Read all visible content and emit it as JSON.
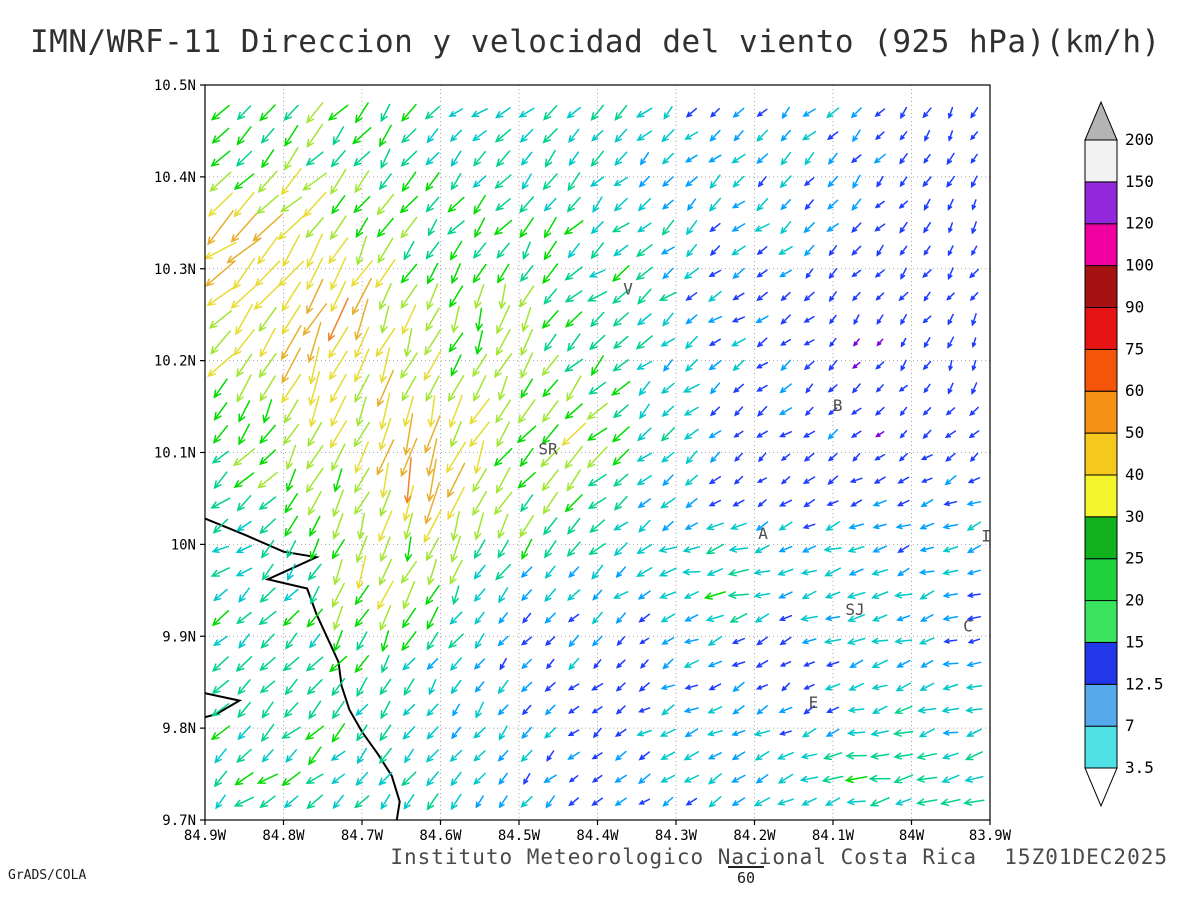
{
  "title": "IMN/WRF-11 Direccion y velocidad del viento (925 hPa)(km/h)",
  "footer": "Instituto Meteorologico Nacional Costa Rica  15Z01DEC2025",
  "credit": "GrADS/COLA",
  "overlay_label": "60",
  "chart_data": {
    "type": "vector_field",
    "title": "IMN/WRF-11 Direccion y velocidad del viento (925 hPa)(km/h)",
    "units": "km/h",
    "level": "925 hPa",
    "valid_time": "15Z01DEC2025",
    "grid_on": true,
    "legend_position": "right",
    "x_axis": {
      "min": -84.9,
      "max": -83.9,
      "ticks": [
        {
          "label": "84.9W",
          "value": -84.9
        },
        {
          "label": "84.8W",
          "value": -84.8
        },
        {
          "label": "84.7W",
          "value": -84.7
        },
        {
          "label": "84.6W",
          "value": -84.6
        },
        {
          "label": "84.5W",
          "value": -84.5
        },
        {
          "label": "84.4W",
          "value": -84.4
        },
        {
          "label": "84.3W",
          "value": -84.3
        },
        {
          "label": "84.2W",
          "value": -84.2
        },
        {
          "label": "84.1W",
          "value": -84.1
        },
        {
          "label": "84W",
          "value": -84.0
        },
        {
          "label": "83.9W",
          "value": -83.9
        }
      ]
    },
    "y_axis": {
      "min": 9.7,
      "max": 10.5,
      "ticks": [
        {
          "label": "10.5N",
          "value": 10.5
        },
        {
          "label": "10.4N",
          "value": 10.4
        },
        {
          "label": "10.3N",
          "value": 10.3
        },
        {
          "label": "10.2N",
          "value": 10.2
        },
        {
          "label": "10.1N",
          "value": 10.1
        },
        {
          "label": "10N",
          "value": 10.0
        },
        {
          "label": "9.9N",
          "value": 9.9
        },
        {
          "label": "9.8N",
          "value": 9.8
        },
        {
          "label": "9.7N",
          "value": 9.7
        }
      ]
    },
    "legend": {
      "levels": [
        3.5,
        7,
        12.5,
        15,
        20,
        25,
        30,
        40,
        50,
        60,
        75,
        90,
        100,
        120,
        150,
        200
      ],
      "colors": [
        "#4FE1E6",
        "#55AAEE",
        "#2238E8",
        "#3BE45F",
        "#1FD23E",
        "#12B21E",
        "#F5F52E",
        "#F5C81E",
        "#F59114",
        "#F5550A",
        "#E61414",
        "#A51212",
        "#F000A0",
        "#9428DC",
        "#F2F2F2"
      ],
      "under_color": "#FFFFFF",
      "over_color": "#B4B4B4"
    },
    "arrow_palette": {
      "thresholds": [
        3.5,
        7,
        12.5,
        15,
        20,
        25,
        30,
        40,
        50,
        60,
        75,
        90,
        100
      ],
      "colors": [
        "#A000C8",
        "#8200DC",
        "#1E3CFF",
        "#00A0FF",
        "#00C8C8",
        "#00D28C",
        "#00DC00",
        "#A0E632",
        "#E6DC32",
        "#E6AF2D",
        "#F08228",
        "#FA3C3C",
        "#F00082"
      ]
    },
    "grid": {
      "lon_start": -84.88,
      "lon_step": 0.03,
      "cols": 33,
      "lat_start": 9.72,
      "lat_step": 0.025,
      "rows": 31,
      "jitter_angle_deg": 14,
      "jitter_speed_frac": 0.22,
      "seed": 7
    },
    "flow_features": [
      {
        "lon": -84.85,
        "lat": 10.46,
        "u": -16,
        "v": -14
      },
      {
        "lon": -84.55,
        "lat": 10.46,
        "u": -13,
        "v": -9
      },
      {
        "lon": -84.25,
        "lat": 10.46,
        "u": -9,
        "v": -7
      },
      {
        "lon": -83.95,
        "lat": 10.46,
        "u": -4,
        "v": -8
      },
      {
        "lon": -84.87,
        "lat": 10.33,
        "u": -48,
        "v": -40
      },
      {
        "lon": -84.72,
        "lat": 10.22,
        "u": -20,
        "v": -58
      },
      {
        "lon": -84.62,
        "lat": 10.08,
        "u": -14,
        "v": -64
      },
      {
        "lon": -84.52,
        "lat": 10.25,
        "u": -8,
        "v": -34
      },
      {
        "lon": -84.4,
        "lat": 10.28,
        "u": -20,
        "v": -12
      },
      {
        "lon": -84.44,
        "lat": 10.12,
        "u": -30,
        "v": -26
      },
      {
        "lon": -84.25,
        "lat": 10.25,
        "u": -12,
        "v": -4
      },
      {
        "lon": -84.05,
        "lat": 10.22,
        "u": -3,
        "v": -5
      },
      {
        "lon": -83.93,
        "lat": 10.2,
        "u": -2,
        "v": -9
      },
      {
        "lon": -83.93,
        "lat": 10.35,
        "u": -5,
        "v": -9
      },
      {
        "lon": -84.2,
        "lat": 10.08,
        "u": -3,
        "v": -3
      },
      {
        "lon": -84.02,
        "lat": 10.1,
        "u": -4,
        "v": -4
      },
      {
        "lon": -83.96,
        "lat": 10.02,
        "u": -14,
        "v": -4
      },
      {
        "lon": -84.25,
        "lat": 9.96,
        "u": -26,
        "v": -2
      },
      {
        "lon": -84.08,
        "lat": 9.94,
        "u": -22,
        "v": -3
      },
      {
        "lon": -83.93,
        "lat": 9.9,
        "u": -10,
        "v": -2
      },
      {
        "lon": -84.05,
        "lat": 9.76,
        "u": -26,
        "v": -5
      },
      {
        "lon": -83.92,
        "lat": 9.74,
        "u": -20,
        "v": -4
      },
      {
        "lon": -84.35,
        "lat": 9.88,
        "u": -4,
        "v": -3
      },
      {
        "lon": -84.5,
        "lat": 9.9,
        "u": -5,
        "v": -6
      },
      {
        "lon": -84.6,
        "lat": 9.82,
        "u": -8,
        "v": -12
      },
      {
        "lon": -84.68,
        "lat": 9.98,
        "u": -12,
        "v": -40
      },
      {
        "lon": -84.8,
        "lat": 9.88,
        "u": -16,
        "v": -14
      },
      {
        "lon": -84.87,
        "lat": 10.0,
        "u": -16,
        "v": -6
      },
      {
        "lon": -84.82,
        "lat": 9.74,
        "u": -18,
        "v": -13
      },
      {
        "lon": -84.4,
        "lat": 9.74,
        "u": -6,
        "v": -5
      },
      {
        "lon": -84.3,
        "lat": 9.8,
        "u": -14,
        "v": -6
      },
      {
        "lon": -84.55,
        "lat": 10.35,
        "u": -14,
        "v": -16
      },
      {
        "lon": -84.15,
        "lat": 9.86,
        "u": -4,
        "v": -4
      }
    ],
    "stations": [
      {
        "label": "V",
        "lon": -84.361,
        "lat": 10.272
      },
      {
        "label": "SR",
        "lon": -84.463,
        "lat": 10.098
      },
      {
        "label": "B",
        "lon": -84.094,
        "lat": 10.145
      },
      {
        "label": "A",
        "lon": -84.189,
        "lat": 10.006
      },
      {
        "label": "SJ",
        "lon": -84.072,
        "lat": 9.923
      },
      {
        "label": "C",
        "lon": -83.928,
        "lat": 9.905
      },
      {
        "label": "E",
        "lon": -84.125,
        "lat": 9.822
      },
      {
        "label": "I",
        "lon": -83.905,
        "lat": 10.003
      }
    ],
    "coastlines": [
      [
        [
          -84.9,
          10.028
        ],
        [
          -84.848,
          10.01
        ],
        [
          -84.8,
          9.992
        ],
        [
          -84.758,
          9.986
        ],
        [
          -84.82,
          9.962
        ],
        [
          -84.77,
          9.952
        ],
        [
          -84.758,
          9.924
        ],
        [
          -84.744,
          9.898
        ],
        [
          -84.73,
          9.872
        ],
        [
          -84.726,
          9.846
        ],
        [
          -84.716,
          9.82
        ],
        [
          -84.7,
          9.796
        ],
        [
          -84.68,
          9.772
        ],
        [
          -84.662,
          9.748
        ],
        [
          -84.652,
          9.72
        ],
        [
          -84.656,
          9.698
        ]
      ],
      [
        [
          -84.9,
          9.838
        ],
        [
          -84.856,
          9.83
        ],
        [
          -84.886,
          9.815
        ],
        [
          -84.9,
          9.812
        ]
      ]
    ]
  }
}
